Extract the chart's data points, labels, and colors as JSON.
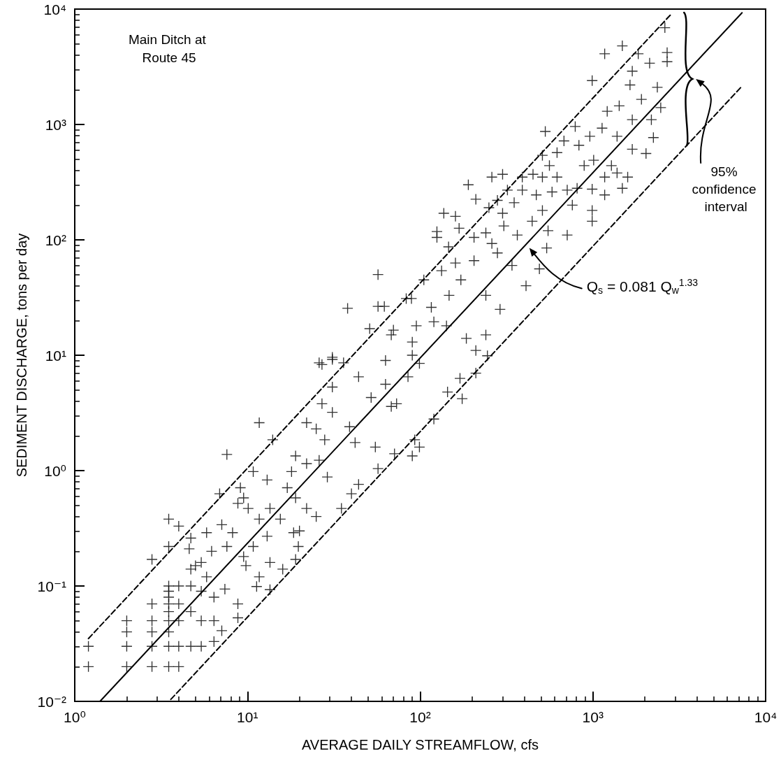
{
  "chart_data": {
    "type": "scatter",
    "xlabel": "AVERAGE DAILY STREAMFLOW, cfs",
    "ylabel": "SEDIMENT DISCHARGE, tons per day",
    "log": "xy",
    "marker": "cross",
    "xlim": [
      1,
      10000
    ],
    "ylim": [
      0.01,
      10000
    ],
    "xticks": [
      {
        "value": 1,
        "label": "10⁰"
      },
      {
        "value": 10,
        "label": "10¹"
      },
      {
        "value": 100,
        "label": "10²"
      },
      {
        "value": 1000,
        "label": "10³"
      },
      {
        "value": 10000,
        "label": "10⁴"
      }
    ],
    "yticks": [
      {
        "value": 0.01,
        "label": "10⁻²"
      },
      {
        "value": 0.1,
        "label": "10⁻¹"
      },
      {
        "value": 1,
        "label": "10⁰"
      },
      {
        "value": 10,
        "label": "10¹"
      },
      {
        "value": 100,
        "label": "10²"
      },
      {
        "value": 1000,
        "label": "10³"
      },
      {
        "value": 10000,
        "label": "10⁴"
      }
    ],
    "annotations": [
      "Main Ditch at Route 45",
      "Q$_{s}$ = 0.081 Q$_{w}$$^{1.33}$",
      "95% confidence interval"
    ],
    "series": [
      {
        "color": "#000000",
        "x": [
          1.2,
          1.2,
          2,
          2,
          2,
          2,
          2.8,
          2.8,
          2.8,
          2.8,
          2.8,
          2.8,
          3.5,
          3.5,
          3.5,
          3.5,
          3.5,
          3.5,
          3.5,
          3.5,
          3.5,
          3.5,
          3.5,
          4,
          4,
          4,
          4,
          4,
          4,
          4.7,
          4.7,
          4.7,
          4.7,
          4.7,
          4.6,
          5.4,
          5.4,
          5.4,
          5.4,
          5.0,
          5.8,
          5.8,
          6.2,
          6.4,
          6.4,
          6.4,
          6.9,
          7.1,
          7.1,
          7.4,
          7.6,
          7.6,
          8.2,
          8.8,
          8.8,
          8.8,
          9.1,
          9.5,
          9.5,
          9.8,
          10.1,
          10.8,
          10.8,
          11.3,
          11.7,
          11.7,
          11.7,
          13,
          13,
          13.5,
          13.5,
          13.5,
          14,
          15.5,
          16,
          17,
          18,
          18.5,
          19,
          19,
          19,
          19.7,
          20,
          22,
          22,
          22,
          25,
          25,
          26,
          26,
          27,
          27,
          28,
          29,
          31,
          31,
          31,
          31,
          35,
          36,
          38,
          39,
          40,
          42,
          44,
          44,
          51,
          52,
          55,
          57,
          57,
          57,
          62,
          63,
          63,
          68,
          68,
          70,
          71,
          73,
          83,
          85,
          89,
          90,
          90,
          90,
          93,
          95,
          99,
          99,
          105,
          116,
          120,
          120,
          125,
          125,
          133,
          137,
          142,
          144,
          146,
          147,
          160,
          160,
          168,
          170,
          172,
          175,
          185,
          190,
          205,
          205,
          210,
          210,
          210,
          240,
          240,
          240,
          245,
          250,
          260,
          260,
          280,
          280,
          290,
          300,
          300,
          305,
          320,
          340,
          350,
          365,
          390,
          390,
          410,
          445,
          450,
          470,
          490,
          510,
          510,
          510,
          530,
          540,
          550,
          560,
          580,
          620,
          620,
          680,
          710,
          710,
          760,
          790,
          810,
          830,
          890,
          960,
          990,
          990,
          990,
          990,
          1010,
          1130,
          1170,
          1170,
          1170,
          1210,
          1280,
          1380,
          1380,
          1420,
          1480,
          1480,
          1590,
          1640,
          1690,
          1690,
          1690,
          1830,
          1910,
          2030,
          2130,
          2180,
          2240,
          2360,
          2470,
          2610,
          2690,
          2690
        ],
        "values": [
          0.03,
          0.02,
          0.05,
          0.04,
          0.03,
          0.02,
          0.17,
          0.07,
          0.05,
          0.04,
          0.03,
          0.02,
          0.38,
          0.22,
          0.1,
          0.09,
          0.08,
          0.07,
          0.06,
          0.05,
          0.04,
          0.03,
          0.02,
          0.33,
          0.1,
          0.07,
          0.05,
          0.03,
          0.02,
          0.26,
          0.1,
          0.06,
          0.03,
          0.14,
          0.21,
          0.16,
          0.09,
          0.05,
          0.03,
          0.15,
          0.29,
          0.12,
          0.2,
          0.08,
          0.05,
          0.033,
          0.63,
          0.34,
          0.041,
          0.094,
          1.38,
          0.22,
          0.29,
          0.52,
          0.07,
          0.053,
          0.71,
          0.58,
          0.18,
          0.15,
          0.47,
          0.98,
          0.22,
          0.099,
          2.6,
          0.12,
          0.38,
          0.83,
          0.27,
          0.47,
          0.093,
          0.16,
          1.85,
          0.38,
          0.14,
          0.71,
          0.98,
          0.29,
          1.34,
          0.58,
          0.17,
          0.22,
          0.3,
          1.15,
          0.47,
          2.6,
          0.4,
          2.3,
          1.23,
          8.6,
          3.8,
          8.3,
          1.85,
          0.88,
          3.2,
          5.3,
          9.6,
          9.2,
          0.47,
          8.6,
          25.5,
          2.4,
          0.63,
          1.75,
          0.76,
          6.5,
          17,
          4.3,
          1.6,
          1.04,
          50,
          26.5,
          26.5,
          5.6,
          9,
          15,
          3.6,
          16.5,
          1.4,
          3.8,
          31,
          6.5,
          31,
          1.34,
          10,
          13,
          1.85,
          18,
          8.5,
          1.6,
          45,
          26,
          19.5,
          2.8,
          105,
          118,
          54,
          170,
          18,
          4.8,
          87,
          33,
          160,
          63,
          126,
          6.3,
          45,
          4.2,
          14,
          300,
          105,
          66,
          225,
          7,
          11,
          115,
          33,
          15,
          9.9,
          190,
          93,
          350,
          220,
          77,
          25,
          370,
          170,
          132,
          270,
          60,
          210,
          110,
          350,
          270,
          40,
          145,
          370,
          245,
          56,
          350,
          540,
          180,
          870,
          85,
          120,
          440,
          260,
          570,
          350,
          720,
          270,
          110,
          200,
          960,
          280,
          660,
          440,
          790,
          2400,
          275,
          180,
          145,
          490,
          930,
          4100,
          350,
          245,
          1300,
          440,
          790,
          380,
          1450,
          4800,
          280,
          350,
          2200,
          2900,
          1100,
          610,
          4100,
          1650,
          560,
          3400,
          1100,
          770,
          2100,
          1400,
          6900,
          4200,
          3500
        ]
      },
      {
        "type": "line",
        "color": "#000000",
        "line_style": "solid",
        "marker": "none",
        "x": [
          1.4,
          7300
        ],
        "values": [
          0.01,
          9300
        ]
      },
      {
        "type": "line",
        "color": "#000000",
        "line_style": "dashed",
        "marker": "none",
        "x": [
          1.2,
          2850
        ],
        "values": [
          0.035,
          9100
        ]
      },
      {
        "type": "line",
        "color": "#000000",
        "line_style": "dashed",
        "marker": "none",
        "x": [
          3.6,
          7300
        ],
        "values": [
          0.0104,
          2150
        ]
      }
    ]
  }
}
